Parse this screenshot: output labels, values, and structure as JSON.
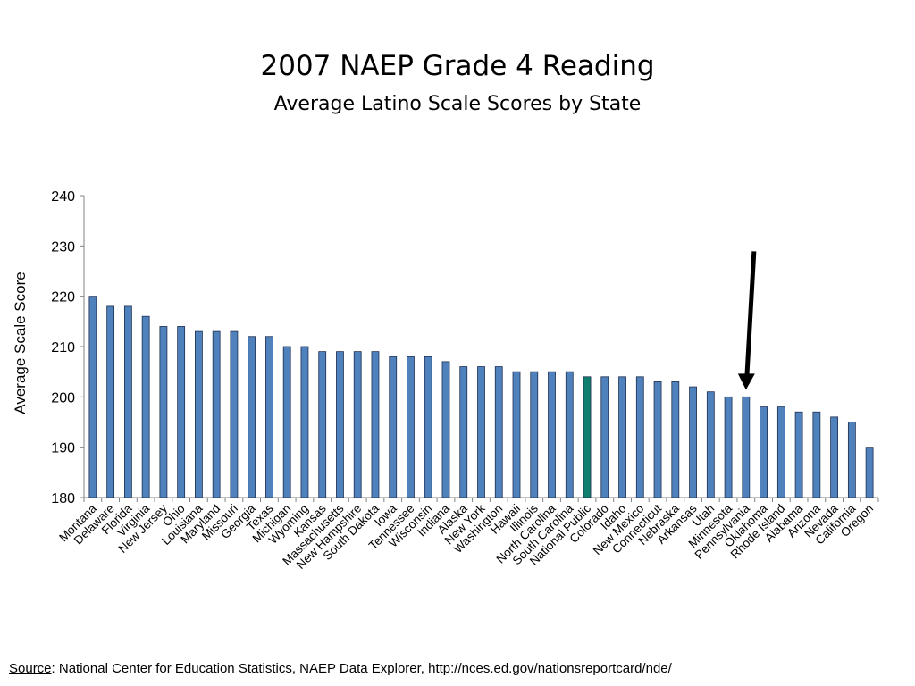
{
  "title": "2007 NAEP Grade 4 Reading",
  "subtitle": "Average Latino Scale Scores by State",
  "source": {
    "label": "Source",
    "text": ":  National Center for Education Statistics, NAEP Data Explorer, http://nces.ed.gov/nationsreportcard/nde/"
  },
  "colors": {
    "bar": "#4F81BD",
    "highlight_bar": "#0E7E6E",
    "bar_stroke": "#1F2F4F",
    "arrow": "#000000"
  },
  "chart_data": {
    "type": "bar",
    "title": "",
    "xlabel": "",
    "ylabel": "Average Scale Score",
    "ylim": [
      180,
      240
    ],
    "yticks": [
      180,
      190,
      200,
      210,
      220,
      230,
      240
    ],
    "grid": false,
    "categories": [
      "Montana",
      "Delaware",
      "Florida",
      "Virginia",
      "New Jersey",
      "Ohio",
      "Louisiana",
      "Maryland",
      "Missouri",
      "Georgia",
      "Texas",
      "Michigan",
      "Wyoming",
      "Kansas",
      "Massachusetts",
      "New Hampshire",
      "South Dakota",
      "Iowa",
      "Tennessee",
      "Wisconsin",
      "Indiana",
      "Alaska",
      "New York",
      "Washington",
      "Hawaii",
      "Illinois",
      "North Carolina",
      "South Carolina",
      "National Public",
      "Colorado",
      "Idaho",
      "New Mexico",
      "Connecticut",
      "Nebraska",
      "Arkansas",
      "Utah",
      "Minnesota",
      "Pennsylvania",
      "Oklahoma",
      "Rhode Island",
      "Alabama",
      "Arizona",
      "Nevada",
      "California",
      "Oregon"
    ],
    "values": [
      220,
      218,
      218,
      216,
      214,
      214,
      213,
      213,
      213,
      212,
      212,
      210,
      210,
      209,
      209,
      209,
      209,
      208,
      208,
      208,
      207,
      206,
      206,
      206,
      205,
      205,
      205,
      205,
      204,
      204,
      204,
      204,
      203,
      203,
      202,
      201,
      200,
      200,
      198,
      198,
      197,
      197,
      196,
      195,
      190
    ],
    "highlighted_category": "National Public",
    "annotation": {
      "type": "arrow",
      "points_to": "Pennsylvania"
    }
  }
}
